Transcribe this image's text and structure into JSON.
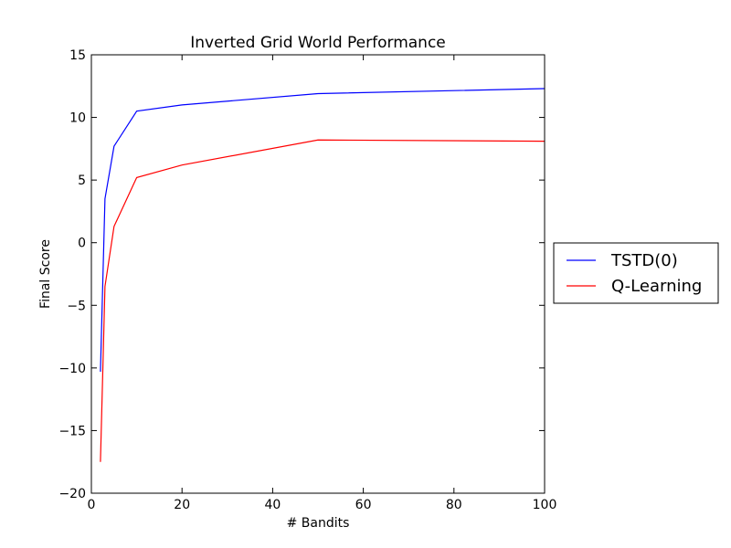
{
  "chart_data": {
    "type": "line",
    "title": "Inverted Grid World Performance",
    "xlabel": "# Bandits",
    "ylabel": "Final Score",
    "xlim": [
      0,
      100
    ],
    "ylim": [
      -20,
      15
    ],
    "xticks": [
      0,
      20,
      40,
      60,
      80,
      100
    ],
    "yticks": [
      -20,
      -15,
      -10,
      -5,
      0,
      5,
      10,
      15
    ],
    "xtick_labels": [
      "0",
      "20",
      "40",
      "60",
      "80",
      "100"
    ],
    "ytick_labels": [
      "−20",
      "−15",
      "−10",
      "−5",
      "0",
      "5",
      "10",
      "15"
    ],
    "grid": false,
    "legend_position": "outside-right",
    "series": [
      {
        "name": "TSTD(0)",
        "color": "#0000ff",
        "x": [
          2,
          3,
          5,
          10,
          20,
          50,
          100
        ],
        "y": [
          -10.3,
          3.5,
          7.7,
          10.5,
          11.0,
          11.9,
          12.3
        ]
      },
      {
        "name": "Q-Learning",
        "color": "#ff0000",
        "x": [
          2,
          3,
          5,
          10,
          20,
          50,
          100
        ],
        "y": [
          -17.5,
          -3.5,
          1.3,
          5.2,
          6.2,
          8.2,
          8.1
        ]
      }
    ]
  }
}
